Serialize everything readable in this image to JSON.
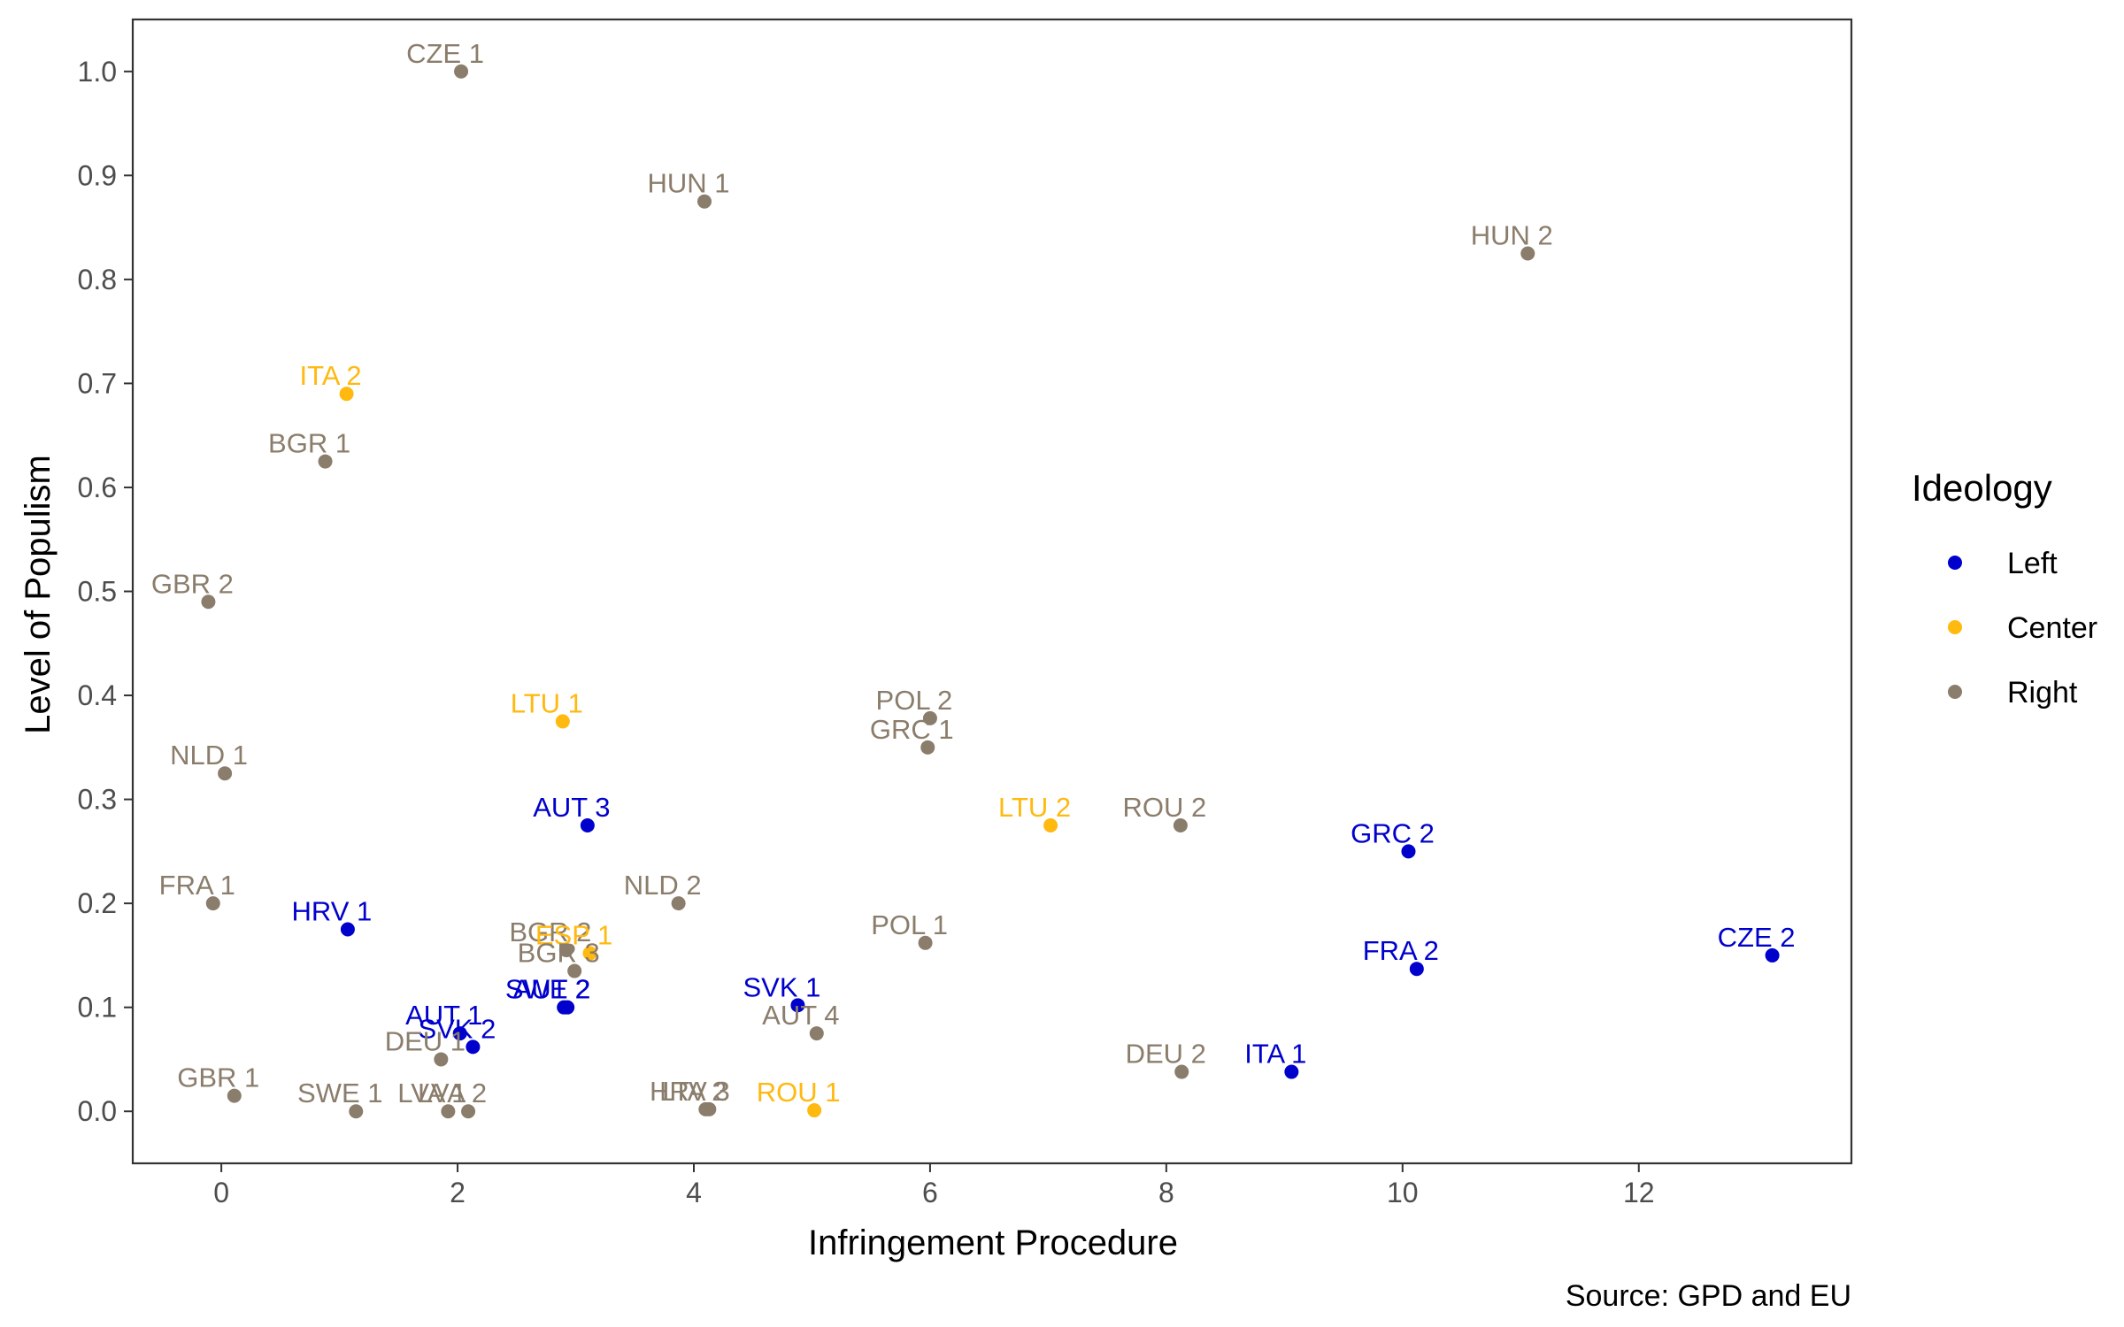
{
  "chart_data": {
    "type": "scatter",
    "title": "",
    "xlabel": "Infringement Procedure",
    "ylabel": "Level of Populism",
    "caption": "Source: GPD and EU",
    "xlim": [
      -0.75,
      13.8
    ],
    "ylim": [
      -0.05,
      1.05
    ],
    "x_ticks": [
      0,
      2,
      4,
      6,
      8,
      10,
      12
    ],
    "y_ticks": [
      0.0,
      0.1,
      0.2,
      0.3,
      0.4,
      0.5,
      0.6,
      0.7,
      0.8,
      0.9,
      1.0
    ],
    "grid": false,
    "legend": {
      "title": "Ideology",
      "placement": "right",
      "entries": [
        {
          "name": "Left",
          "color": "#0000CD"
        },
        {
          "name": "Center",
          "color": "#FFB90F"
        },
        {
          "name": "Right",
          "color": "#8B7D6B"
        }
      ]
    },
    "points": [
      {
        "label": "CZE 1",
        "x": 2.03,
        "y": 1.0,
        "ideology": "Right"
      },
      {
        "label": "HUN 1",
        "x": 4.09,
        "y": 0.875,
        "ideology": "Right"
      },
      {
        "label": "HUN 2",
        "x": 11.06,
        "y": 0.825,
        "ideology": "Right"
      },
      {
        "label": "ITA 2",
        "x": 1.06,
        "y": 0.69,
        "ideology": "Center"
      },
      {
        "label": "BGR 1",
        "x": 0.88,
        "y": 0.625,
        "ideology": "Right"
      },
      {
        "label": "GBR 2",
        "x": -0.11,
        "y": 0.49,
        "ideology": "Right"
      },
      {
        "label": "LTU 1",
        "x": 2.89,
        "y": 0.375,
        "ideology": "Center"
      },
      {
        "label": "POL 2",
        "x": 6.0,
        "y": 0.378,
        "ideology": "Right"
      },
      {
        "label": "GRC 1",
        "x": 5.98,
        "y": 0.35,
        "ideology": "Right"
      },
      {
        "label": "NLD 1",
        "x": 0.03,
        "y": 0.325,
        "ideology": "Right"
      },
      {
        "label": "AUT 3",
        "x": 3.1,
        "y": 0.275,
        "ideology": "Left"
      },
      {
        "label": "LTU 2",
        "x": 7.02,
        "y": 0.275,
        "ideology": "Center"
      },
      {
        "label": "ROU 2",
        "x": 8.12,
        "y": 0.275,
        "ideology": "Right"
      },
      {
        "label": "GRC 2",
        "x": 10.05,
        "y": 0.25,
        "ideology": "Left"
      },
      {
        "label": "FRA 1",
        "x": -0.07,
        "y": 0.2,
        "ideology": "Right"
      },
      {
        "label": "NLD 2",
        "x": 3.87,
        "y": 0.2,
        "ideology": "Right"
      },
      {
        "label": "HRV 1",
        "x": 1.07,
        "y": 0.175,
        "ideology": "Left"
      },
      {
        "label": "CZE 2",
        "x": 13.13,
        "y": 0.15,
        "ideology": "Left"
      },
      {
        "label": "POL 1",
        "x": 5.96,
        "y": 0.162,
        "ideology": "Right"
      },
      {
        "label": "FRA 2",
        "x": 10.12,
        "y": 0.137,
        "ideology": "Left"
      },
      {
        "label": "BGR 2",
        "x": 2.92,
        "y": 0.155,
        "ideology": "Right"
      },
      {
        "label": "ESP 1",
        "x": 3.12,
        "y": 0.152,
        "ideology": "Center"
      },
      {
        "label": "BGR 3",
        "x": 2.99,
        "y": 0.135,
        "ideology": "Right"
      },
      {
        "label": "SWE 2",
        "x": 2.9,
        "y": 0.1,
        "ideology": "Left"
      },
      {
        "label": "AUT 2",
        "x": 2.93,
        "y": 0.1,
        "ideology": "Left"
      },
      {
        "label": "SVK 1",
        "x": 4.88,
        "y": 0.102,
        "ideology": "Left"
      },
      {
        "label": "AUT 4",
        "x": 5.04,
        "y": 0.075,
        "ideology": "Right"
      },
      {
        "label": "AUT 1",
        "x": 2.02,
        "y": 0.075,
        "ideology": "Left"
      },
      {
        "label": "SVK 2",
        "x": 2.13,
        "y": 0.062,
        "ideology": "Left"
      },
      {
        "label": "DEU 1",
        "x": 1.86,
        "y": 0.05,
        "ideology": "Right"
      },
      {
        "label": "DEU 2",
        "x": 8.13,
        "y": 0.038,
        "ideology": "Right"
      },
      {
        "label": "ITA 1",
        "x": 9.06,
        "y": 0.038,
        "ideology": "Left"
      },
      {
        "label": "GBR 1",
        "x": 0.11,
        "y": 0.015,
        "ideology": "Right"
      },
      {
        "label": "SWE 1",
        "x": 1.14,
        "y": 0.0,
        "ideology": "Right"
      },
      {
        "label": "LVA 1",
        "x": 1.92,
        "y": 0.0,
        "ideology": "Right"
      },
      {
        "label": "LVA 2",
        "x": 2.09,
        "y": 0.0,
        "ideology": "Right"
      },
      {
        "label": "HRV 3",
        "x": 4.1,
        "y": 0.002,
        "ideology": "Right"
      },
      {
        "label": "LTA 2",
        "x": 4.13,
        "y": 0.002,
        "ideology": "Right"
      },
      {
        "label": "ROU 1",
        "x": 5.02,
        "y": 0.001,
        "ideology": "Center"
      }
    ]
  }
}
